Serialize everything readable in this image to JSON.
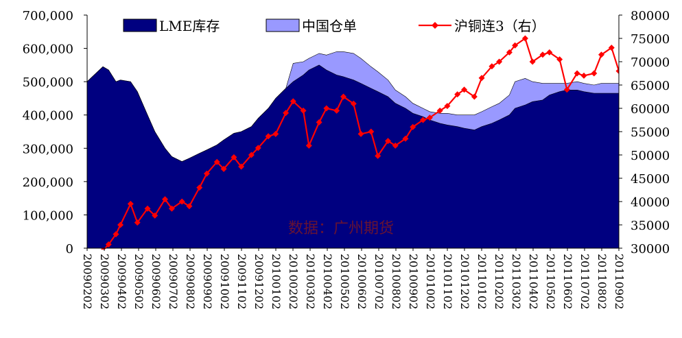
{
  "chart_data": {
    "type": "area",
    "title": "",
    "xlabel": "",
    "ylabel": "",
    "y2label": "",
    "watermark": "数据：广州期货",
    "legend_position": "top",
    "ylim": [
      0,
      700000
    ],
    "y2lim": [
      30000,
      80000
    ],
    "y_ticks": [
      "0",
      "100,000",
      "200,000",
      "300,000",
      "400,000",
      "500,000",
      "600,000",
      "700,000"
    ],
    "y2_ticks": [
      "30000",
      "35000",
      "40000",
      "45000",
      "50000",
      "55000",
      "60000",
      "65000",
      "70000",
      "75000",
      "80000"
    ],
    "x_ticks": [
      "20090202",
      "20090302",
      "20090402",
      "20090502",
      "20090602",
      "20090702",
      "20090802",
      "20090902",
      "20091002",
      "20091102",
      "20091202",
      "20100102",
      "20100202",
      "20100302",
      "20100402",
      "20100502",
      "20100602",
      "20100702",
      "20100802",
      "20100902",
      "20101002",
      "20101102",
      "20101202",
      "20110102",
      "20110202",
      "20110302",
      "20110402",
      "20110502",
      "20110602",
      "20110702",
      "20110802",
      "20110902"
    ],
    "x_start": "2009-02-02",
    "x_end": "2011-09-02",
    "series": [
      {
        "name": "LME库存",
        "kind": "area",
        "axis": "left",
        "color": "#000080",
        "x": [
          "2009-02-02",
          "2009-03-02",
          "2009-03-12",
          "2009-03-25",
          "2009-04-02",
          "2009-04-20",
          "2009-05-02",
          "2009-05-20",
          "2009-06-02",
          "2009-06-20",
          "2009-07-02",
          "2009-07-20",
          "2009-08-02",
          "2009-08-20",
          "2009-09-02",
          "2009-09-20",
          "2009-10-02",
          "2009-10-20",
          "2009-11-02",
          "2009-11-20",
          "2009-12-02",
          "2009-12-20",
          "2010-01-02",
          "2010-01-20",
          "2010-02-02",
          "2010-02-20",
          "2010-03-02",
          "2010-03-20",
          "2010-04-02",
          "2010-04-20",
          "2010-05-02",
          "2010-05-20",
          "2010-06-02",
          "2010-06-20",
          "2010-07-02",
          "2010-07-20",
          "2010-08-02",
          "2010-08-20",
          "2010-09-02",
          "2010-09-20",
          "2010-10-02",
          "2010-10-20",
          "2010-11-02",
          "2010-11-20",
          "2010-12-02",
          "2010-12-20",
          "2011-01-02",
          "2011-01-20",
          "2011-02-02",
          "2011-02-20",
          "2011-03-02",
          "2011-03-20",
          "2011-04-02",
          "2011-04-20",
          "2011-05-02",
          "2011-05-20",
          "2011-06-02",
          "2011-06-20",
          "2011-07-02",
          "2011-07-20",
          "2011-08-02",
          "2011-08-20",
          "2011-09-02"
        ],
        "values": [
          500000,
          545000,
          535000,
          500000,
          505000,
          500000,
          470000,
          400000,
          350000,
          300000,
          275000,
          260000,
          270000,
          285000,
          295000,
          310000,
          325000,
          345000,
          350000,
          365000,
          390000,
          420000,
          450000,
          480000,
          500000,
          520000,
          535000,
          550000,
          535000,
          520000,
          515000,
          505000,
          495000,
          480000,
          470000,
          455000,
          435000,
          420000,
          405000,
          395000,
          385000,
          375000,
          370000,
          365000,
          360000,
          355000,
          365000,
          375000,
          385000,
          400000,
          420000,
          430000,
          440000,
          445000,
          460000,
          470000,
          475000,
          475000,
          470000,
          465000,
          465000,
          465000,
          465000
        ]
      },
      {
        "name": "中国仓单",
        "kind": "area",
        "axis": "left",
        "color": "#9999ff",
        "x": [
          "2009-02-02",
          "2009-03-02",
          "2009-03-12",
          "2009-03-25",
          "2009-04-02",
          "2009-04-20",
          "2009-05-02",
          "2009-05-20",
          "2009-06-02",
          "2009-06-20",
          "2009-07-02",
          "2009-07-20",
          "2009-08-02",
          "2009-08-20",
          "2009-09-02",
          "2009-09-20",
          "2009-10-02",
          "2009-10-20",
          "2009-11-02",
          "2009-11-20",
          "2009-12-02",
          "2009-12-20",
          "2010-01-02",
          "2010-01-20",
          "2010-02-02",
          "2010-02-20",
          "2010-03-02",
          "2010-03-20",
          "2010-04-02",
          "2010-04-20",
          "2010-05-02",
          "2010-05-20",
          "2010-06-02",
          "2010-06-20",
          "2010-07-02",
          "2010-07-20",
          "2010-08-02",
          "2010-08-20",
          "2010-09-02",
          "2010-09-20",
          "2010-10-02",
          "2010-10-20",
          "2010-11-02",
          "2010-11-20",
          "2010-12-02",
          "2010-12-20",
          "2011-01-02",
          "2011-01-20",
          "2011-02-02",
          "2011-02-20",
          "2011-03-02",
          "2011-03-20",
          "2011-04-02",
          "2011-04-20",
          "2011-05-02",
          "2011-05-20",
          "2011-06-02",
          "2011-06-20",
          "2011-07-02",
          "2011-07-20",
          "2011-08-02",
          "2011-08-20",
          "2011-09-02"
        ],
        "values": [
          0,
          0,
          0,
          0,
          0,
          0,
          0,
          0,
          0,
          0,
          0,
          0,
          0,
          0,
          0,
          0,
          0,
          0,
          0,
          0,
          0,
          0,
          0,
          0,
          55000,
          40000,
          35000,
          35000,
          45000,
          70000,
          75000,
          80000,
          75000,
          65000,
          60000,
          50000,
          40000,
          35000,
          30000,
          25000,
          25000,
          30000,
          35000,
          35000,
          40000,
          45000,
          45000,
          50000,
          50000,
          60000,
          80000,
          80000,
          60000,
          50000,
          35000,
          25000,
          20000,
          25000,
          25000,
          25000,
          30000,
          30000,
          30000
        ]
      },
      {
        "name": "沪铜连3（右）",
        "kind": "line",
        "axis": "right",
        "color": "#ff0000",
        "x": [
          "2009-02-02",
          "2009-03-02",
          "2009-03-12",
          "2009-03-25",
          "2009-04-02",
          "2009-04-20",
          "2009-05-02",
          "2009-05-20",
          "2009-06-02",
          "2009-06-20",
          "2009-07-02",
          "2009-07-20",
          "2009-08-02",
          "2009-08-20",
          "2009-09-02",
          "2009-09-20",
          "2009-10-02",
          "2009-10-20",
          "2009-11-02",
          "2009-11-20",
          "2009-12-02",
          "2009-12-20",
          "2010-01-02",
          "2010-01-20",
          "2010-02-02",
          "2010-02-20",
          "2010-03-02",
          "2010-03-20",
          "2010-04-02",
          "2010-04-20",
          "2010-05-02",
          "2010-05-20",
          "2010-06-02",
          "2010-06-20",
          "2010-07-02",
          "2010-07-20",
          "2010-08-02",
          "2010-08-20",
          "2010-09-02",
          "2010-09-20",
          "2010-10-02",
          "2010-10-20",
          "2010-11-02",
          "2010-11-20",
          "2010-12-02",
          "2010-12-20",
          "2011-01-02",
          "2011-01-20",
          "2011-02-02",
          "2011-02-20",
          "2011-03-02",
          "2011-03-20",
          "2011-04-02",
          "2011-04-20",
          "2011-05-02",
          "2011-05-20",
          "2011-06-02",
          "2011-06-20",
          "2011-07-02",
          "2011-07-20",
          "2011-08-02",
          "2011-08-20",
          "2011-09-02"
        ],
        "values": [
          28500,
          29500,
          30800,
          33000,
          35000,
          39500,
          35500,
          38500,
          37000,
          40500,
          38500,
          40000,
          39000,
          43000,
          46000,
          48500,
          47000,
          49500,
          47500,
          50000,
          51500,
          54000,
          54500,
          59000,
          61500,
          59500,
          52000,
          57000,
          60000,
          59500,
          62500,
          61000,
          54500,
          55000,
          49800,
          53000,
          52000,
          53500,
          56000,
          57500,
          58000,
          59500,
          60500,
          63000,
          64000,
          62500,
          66500,
          69000,
          70000,
          72000,
          73500,
          75000,
          70000,
          71500,
          72000,
          70500,
          64000,
          67500,
          67000,
          67500,
          71500,
          73000,
          68000
        ]
      }
    ]
  }
}
